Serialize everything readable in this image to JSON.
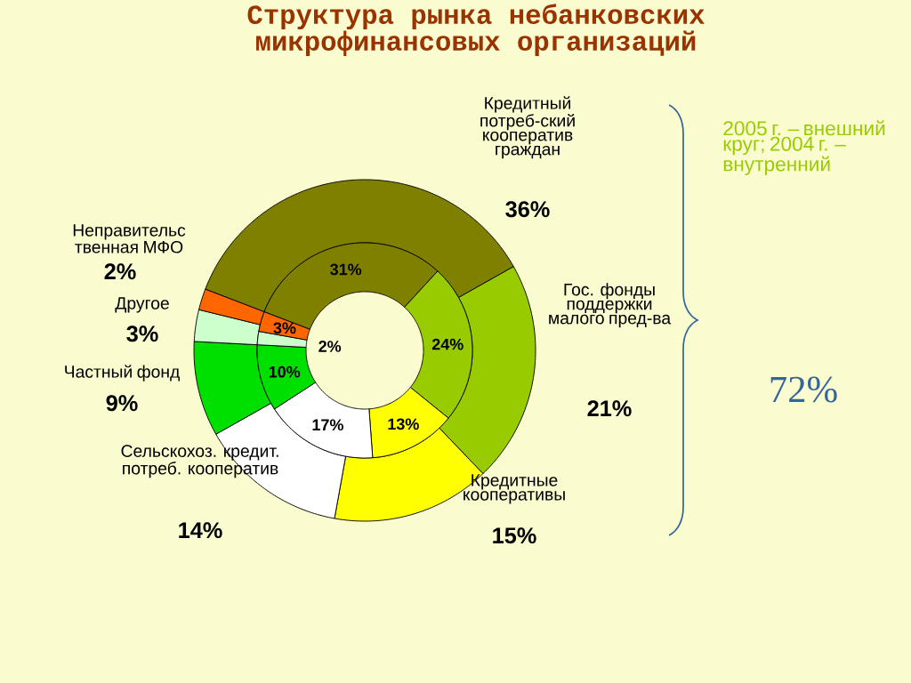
{
  "chart_data": {
    "type": "donut",
    "title": "Структура рынка небанковских микрофинансовых организаций",
    "categories": [
      "Кредитный потреб-ский кооператив граждан",
      "Гос. фонды поддержки малого пред-ва",
      "Кредитные кооперативы",
      "Сельскохоз. кредит. потреб. кооператив",
      "Частный фонд",
      "Другое",
      "Неправительс твенная МФО"
    ],
    "colors": [
      "#808000",
      "#99cc00",
      "#ffff00",
      "#ffffff",
      "#00e000",
      "#ccffcc",
      "#ff6600"
    ],
    "series": [
      {
        "values": [
          36,
          21,
          15,
          14,
          9,
          3,
          2
        ],
        "value_labels": [
          "36%",
          "21%",
          "15%",
          "14%",
          "9%",
          "3%",
          "2%"
        ]
      },
      {
        "values": [
          31,
          24,
          13,
          17,
          10,
          2,
          3
        ],
        "value_labels": [
          "31%",
          "24%",
          "13%",
          "17%",
          "10%",
          "2%",
          "3%"
        ]
      }
    ],
    "annotations": [
      "2005 г. – внешний круг; 2004 г. – внутренний",
      "72%"
    ]
  }
}
